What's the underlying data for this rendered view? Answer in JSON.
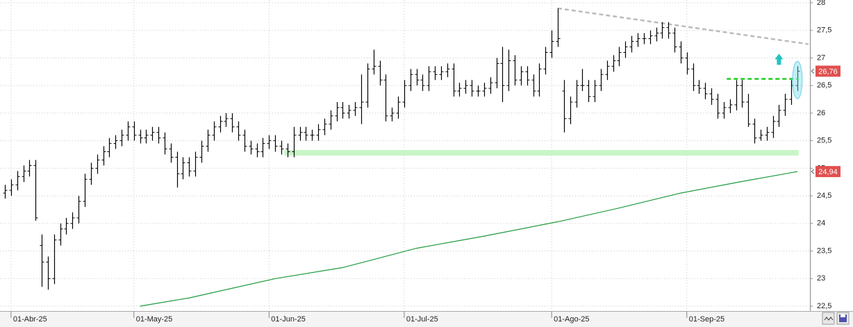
{
  "chart_data": {
    "type": "ohlc",
    "xlim": [
      -0.79,
      131.04
    ],
    "ylim": [
      22.5,
      28
    ],
    "xticks": [
      {
        "value": 1,
        "label": "01-Abr-25"
      },
      {
        "value": 21,
        "label": "01-May-25"
      },
      {
        "value": 43,
        "label": "01-Jun-25"
      },
      {
        "value": 65,
        "label": "01-Jul-25"
      },
      {
        "value": 89,
        "label": "01-Ago-25"
      },
      {
        "value": 111,
        "label": "01-Sep-25"
      }
    ],
    "yticks": [
      {
        "value": 22.5,
        "label": "22,5"
      },
      23,
      {
        "value": 23.5,
        "label": "23,5"
      },
      24,
      {
        "value": 24.5,
        "label": "24,5"
      },
      25,
      {
        "value": 25.5,
        "label": "25,5"
      },
      26,
      {
        "value": 26.5,
        "label": "26,5"
      },
      27,
      {
        "value": 27.5,
        "label": "27,5"
      },
      28
    ],
    "grid": true,
    "color": "#000000",
    "open": [
      24.55,
      24.6,
      24.7,
      24.85,
      24.95,
      25.05,
      23.6,
      23.3,
      23.0,
      23.7,
      23.9,
      24.0,
      24.1,
      24.4,
      24.8,
      25.0,
      25.15,
      25.3,
      25.45,
      25.5,
      25.6,
      25.75,
      25.6,
      25.55,
      25.6,
      25.65,
      25.55,
      25.35,
      25.2,
      24.9,
      25.1,
      24.95,
      25.2,
      25.4,
      25.6,
      25.75,
      25.85,
      25.9,
      25.75,
      25.6,
      25.4,
      25.35,
      25.3,
      25.45,
      25.5,
      25.4,
      25.35,
      25.3,
      25.6,
      25.65,
      25.6,
      25.6,
      25.7,
      25.8,
      25.95,
      26.1,
      26.0,
      26.05,
      26.1,
      26.2,
      26.8,
      26.85,
      26.6,
      25.95,
      26.0,
      26.2,
      26.5,
      26.7,
      26.6,
      26.5,
      26.75,
      26.7,
      26.75,
      26.8,
      26.4,
      26.45,
      26.5,
      26.4,
      26.4,
      26.45,
      26.55,
      26.9,
      26.5,
      26.95,
      26.6,
      26.75,
      26.6,
      26.4,
      26.8,
      27.1,
      27.3,
      26.4,
      25.9,
      26.2,
      26.5,
      26.5,
      26.3,
      26.5,
      26.7,
      26.85,
      26.95,
      27.1,
      27.2,
      27.3,
      27.35,
      27.35,
      27.4,
      27.45,
      27.55,
      27.45,
      27.2,
      27.0,
      26.8,
      26.5,
      26.45,
      26.35,
      26.25,
      26.0,
      26.1,
      26.15,
      26.5,
      26.2,
      25.8,
      25.55,
      25.6,
      25.65,
      25.85,
      26.05,
      26.25,
      26.5
    ],
    "high": [
      24.7,
      24.8,
      24.95,
      25.05,
      25.15,
      25.15,
      23.8,
      23.4,
      23.8,
      24.0,
      24.1,
      24.2,
      24.5,
      24.9,
      25.1,
      25.25,
      25.4,
      25.55,
      25.6,
      25.7,
      25.85,
      25.85,
      25.7,
      25.7,
      25.75,
      25.75,
      25.65,
      25.45,
      25.3,
      25.2,
      25.2,
      25.3,
      25.5,
      25.7,
      25.85,
      25.95,
      26.0,
      26.0,
      25.85,
      25.7,
      25.5,
      25.45,
      25.55,
      25.6,
      25.6,
      25.5,
      25.45,
      25.75,
      25.75,
      25.75,
      25.7,
      25.8,
      25.9,
      26.05,
      26.2,
      26.2,
      26.15,
      26.2,
      26.7,
      26.9,
      27.15,
      26.95,
      26.7,
      26.1,
      26.3,
      26.6,
      26.8,
      26.8,
      26.7,
      26.85,
      26.85,
      26.85,
      26.9,
      26.9,
      26.55,
      26.6,
      26.6,
      26.5,
      26.55,
      26.65,
      27.0,
      27.2,
      27.15,
      27.05,
      26.85,
      26.85,
      26.7,
      26.9,
      27.2,
      27.5,
      27.9,
      26.6,
      26.3,
      26.6,
      26.8,
      26.6,
      26.6,
      26.8,
      26.95,
      27.05,
      27.2,
      27.3,
      27.4,
      27.45,
      27.45,
      27.5,
      27.55,
      27.65,
      27.65,
      27.55,
      27.3,
      27.1,
      26.9,
      26.6,
      26.55,
      26.45,
      26.35,
      26.2,
      26.25,
      26.6,
      26.6,
      26.35,
      25.9,
      25.7,
      25.75,
      25.95,
      26.15,
      26.35,
      26.6,
      26.85
    ],
    "low": [
      24.45,
      24.5,
      24.6,
      24.75,
      24.85,
      24.05,
      22.85,
      22.8,
      22.9,
      23.6,
      23.8,
      23.9,
      24.0,
      24.3,
      24.7,
      24.9,
      25.05,
      25.2,
      25.35,
      25.4,
      25.5,
      25.5,
      25.45,
      25.45,
      25.5,
      25.45,
      25.25,
      25.1,
      24.65,
      24.8,
      24.85,
      24.85,
      25.1,
      25.3,
      25.5,
      25.65,
      25.75,
      25.65,
      25.5,
      25.3,
      25.25,
      25.2,
      25.2,
      25.35,
      25.3,
      25.25,
      25.2,
      25.2,
      25.5,
      25.5,
      25.5,
      25.5,
      25.6,
      25.7,
      25.85,
      25.9,
      25.9,
      25.95,
      25.8,
      26.1,
      26.7,
      26.5,
      25.85,
      25.85,
      25.9,
      26.1,
      26.4,
      26.5,
      26.4,
      26.4,
      26.6,
      26.6,
      26.65,
      26.3,
      26.3,
      26.35,
      26.3,
      26.3,
      26.3,
      26.35,
      26.45,
      26.2,
      26.4,
      26.5,
      26.5,
      26.5,
      26.3,
      26.3,
      26.7,
      27.0,
      27.2,
      25.65,
      25.8,
      26.1,
      26.4,
      26.2,
      26.2,
      26.4,
      26.6,
      26.75,
      26.85,
      27.0,
      27.1,
      27.2,
      27.25,
      27.25,
      27.3,
      27.35,
      27.35,
      27.1,
      26.9,
      26.7,
      26.4,
      26.35,
      26.25,
      26.15,
      25.9,
      25.9,
      26.0,
      26.05,
      26.1,
      25.75,
      25.45,
      25.5,
      25.5,
      25.55,
      25.75,
      25.95,
      26.15,
      26.4
    ],
    "close": [
      24.6,
      24.7,
      24.85,
      24.95,
      25.05,
      24.1,
      23.3,
      23.0,
      23.7,
      23.9,
      24.0,
      24.1,
      24.4,
      24.8,
      25.0,
      25.15,
      25.3,
      25.45,
      25.5,
      25.6,
      25.75,
      25.6,
      25.55,
      25.6,
      25.65,
      25.55,
      25.35,
      25.2,
      24.9,
      25.1,
      24.95,
      25.2,
      25.4,
      25.6,
      25.75,
      25.85,
      25.9,
      25.75,
      25.6,
      25.4,
      25.35,
      25.3,
      25.45,
      25.5,
      25.4,
      25.35,
      25.3,
      25.6,
      25.65,
      25.6,
      25.6,
      25.7,
      25.8,
      25.95,
      26.1,
      26.0,
      26.05,
      26.1,
      26.2,
      26.8,
      26.85,
      26.6,
      25.95,
      26.0,
      26.2,
      26.5,
      26.7,
      26.6,
      26.5,
      26.75,
      26.7,
      26.75,
      26.8,
      26.4,
      26.45,
      26.5,
      26.4,
      26.4,
      26.45,
      26.55,
      26.9,
      26.5,
      26.95,
      26.6,
      26.75,
      26.6,
      26.4,
      26.8,
      27.1,
      27.3,
      27.35,
      25.9,
      26.2,
      26.5,
      26.5,
      26.3,
      26.5,
      26.7,
      26.85,
      26.95,
      27.1,
      27.2,
      27.3,
      27.35,
      27.35,
      27.4,
      27.45,
      27.55,
      27.45,
      27.2,
      27.0,
      26.8,
      26.5,
      26.45,
      26.35,
      26.25,
      26.0,
      26.1,
      26.15,
      26.5,
      26.2,
      25.8,
      25.55,
      25.6,
      25.65,
      25.85,
      26.05,
      26.25,
      26.5,
      26.76
    ],
    "moving_average": {
      "color": "#1e9a3c",
      "x": [
        22,
        30,
        44,
        55,
        67,
        78,
        90,
        100,
        110,
        120,
        129
      ],
      "values": [
        22.5,
        22.65,
        23.0,
        23.2,
        23.55,
        23.77,
        24.03,
        24.28,
        24.55,
        24.76,
        24.94
      ]
    },
    "price_labels": [
      {
        "value": 26.76,
        "label": "26,76"
      },
      {
        "value": 24.94,
        "label": "24,94"
      }
    ],
    "trendline": {
      "color": "#bbbbbb",
      "x": [
        90,
        130.8
      ],
      "values": [
        27.9,
        27.25
      ]
    },
    "support": {
      "color": "#c8f5c8",
      "x": [
        45.5,
        129.2
      ],
      "value": 25.28
    },
    "resistance": {
      "color": "#22cc22",
      "x": [
        117.5,
        129.2
      ],
      "value": 26.62
    }
  }
}
